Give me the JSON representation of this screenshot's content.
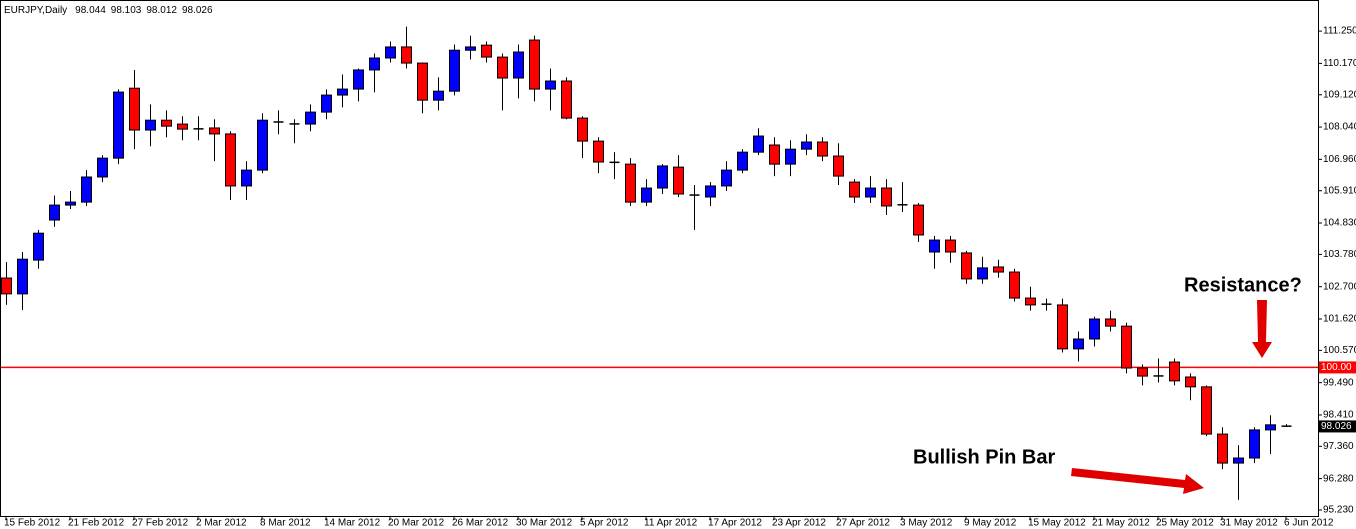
{
  "chart_data": {
    "type": "candlestick",
    "title": "EURJPY,Daily",
    "categories": [
      "15 Feb 2012",
      null,
      null,
      null,
      "21 Feb 2012",
      null,
      null,
      null,
      "27 Feb 2012",
      null,
      null,
      null,
      "2 Mar 2012",
      null,
      null,
      null,
      "8 Mar 2012",
      null,
      null,
      null,
      "14 Mar 2012",
      null,
      null,
      null,
      "20 Mar 2012",
      null,
      null,
      null,
      "26 Mar 2012",
      null,
      null,
      null,
      "30 Mar 2012",
      null,
      null,
      null,
      "5 Apr 2012",
      null,
      null,
      null,
      "11 Apr 2012",
      null,
      null,
      null,
      "17 Apr 2012",
      null,
      null,
      null,
      "23 Apr 2012",
      null,
      null,
      null,
      "27 Apr 2012",
      null,
      null,
      null,
      "3 May 2012",
      null,
      null,
      null,
      "9 May 2012",
      null,
      null,
      null,
      "15 May 2012",
      null,
      null,
      null,
      "21 May 2012",
      null,
      null,
      null,
      "25 May 2012",
      null,
      null,
      null,
      "31 May 2012",
      null,
      null,
      null,
      "6 Jun 2012"
    ],
    "series": {
      "open": [
        102.99,
        102.46,
        103.59,
        104.93,
        105.43,
        105.53,
        106.37,
        107.0,
        109.34,
        107.94,
        108.27,
        108.14,
        107.97,
        108.01,
        107.81,
        106.07,
        106.6,
        108.2,
        108.14,
        108.14,
        108.54,
        109.11,
        109.31,
        109.95,
        110.35,
        110.72,
        110.18,
        108.94,
        109.24,
        110.61,
        110.78,
        110.38,
        109.68,
        110.95,
        109.31,
        109.58,
        108.34,
        107.57,
        106.87,
        106.8,
        105.53,
        106.0,
        106.7,
        105.77,
        105.7,
        106.07,
        106.6,
        107.2,
        107.44,
        106.8,
        107.3,
        107.54,
        107.07,
        106.2,
        105.7,
        106.0,
        105.43,
        105.43,
        103.86,
        104.26,
        103.83,
        102.96,
        103.36,
        103.19,
        102.32,
        102.12,
        102.09,
        100.62,
        100.95,
        101.62,
        101.38,
        99.98,
        99.72,
        100.18,
        99.68,
        99.35,
        97.77,
        96.8,
        96.97,
        97.91,
        98.044
      ],
      "high": [
        103.52,
        103.86,
        104.6,
        105.75,
        105.9,
        106.6,
        107.1,
        109.3,
        109.95,
        108.8,
        108.6,
        108.4,
        108.4,
        108.3,
        107.9,
        106.9,
        108.5,
        108.6,
        108.3,
        108.8,
        109.3,
        109.8,
        110.0,
        110.5,
        110.9,
        111.4,
        110.2,
        109.7,
        110.8,
        111.1,
        110.9,
        110.5,
        110.8,
        111.1,
        110.0,
        109.7,
        108.4,
        107.7,
        107.2,
        107.0,
        106.3,
        106.8,
        107.1,
        106.1,
        106.2,
        106.9,
        107.3,
        108.0,
        107.7,
        107.6,
        107.8,
        107.7,
        107.5,
        106.3,
        106.4,
        106.3,
        106.2,
        105.5,
        104.4,
        104.4,
        103.9,
        103.7,
        103.6,
        103.3,
        102.7,
        102.3,
        102.3,
        101.2,
        101.7,
        101.9,
        101.5,
        100.1,
        100.3,
        100.3,
        99.8,
        99.4,
        98.0,
        97.4,
        98.0,
        98.4,
        98.103
      ],
      "low": [
        102.09,
        101.92,
        103.3,
        104.7,
        105.3,
        105.4,
        106.2,
        106.8,
        107.3,
        107.4,
        107.7,
        107.6,
        107.6,
        106.9,
        105.6,
        105.6,
        106.5,
        107.8,
        107.5,
        107.9,
        108.3,
        108.7,
        108.9,
        109.2,
        110.2,
        110.0,
        108.5,
        108.6,
        109.1,
        110.3,
        110.2,
        108.6,
        109.0,
        108.9,
        108.6,
        108.3,
        107.0,
        106.5,
        106.3,
        105.4,
        105.4,
        105.8,
        105.7,
        104.6,
        105.4,
        105.9,
        106.5,
        107.1,
        106.4,
        106.4,
        107.1,
        106.9,
        106.1,
        105.5,
        105.5,
        105.1,
        105.2,
        104.2,
        103.3,
        103.5,
        102.8,
        102.8,
        103.0,
        102.2,
        101.9,
        101.9,
        100.5,
        100.2,
        100.7,
        101.2,
        99.8,
        99.4,
        99.5,
        99.4,
        98.9,
        97.7,
        96.6,
        95.57,
        96.8,
        97.1,
        98.012
      ],
      "close": [
        102.46,
        103.62,
        104.49,
        105.43,
        105.53,
        106.37,
        107.0,
        109.21,
        107.94,
        108.27,
        108.07,
        107.97,
        107.99,
        107.81,
        106.07,
        106.6,
        108.27,
        108.22,
        108.15,
        108.54,
        109.11,
        109.31,
        109.95,
        110.35,
        110.72,
        110.18,
        108.94,
        109.24,
        110.61,
        110.72,
        110.38,
        109.68,
        110.55,
        109.31,
        109.58,
        108.34,
        107.57,
        106.87,
        106.85,
        105.53,
        106.0,
        106.74,
        105.8,
        105.76,
        106.07,
        106.6,
        107.2,
        107.74,
        106.8,
        107.3,
        107.54,
        107.07,
        106.4,
        105.7,
        106.0,
        105.4,
        105.45,
        104.43,
        104.26,
        103.86,
        102.96,
        103.33,
        103.19,
        102.32,
        102.09,
        102.11,
        100.62,
        100.95,
        101.62,
        101.38,
        99.98,
        99.71,
        99.71,
        99.55,
        99.35,
        97.77,
        96.8,
        96.97,
        97.91,
        98.08,
        98.026
      ]
    },
    "up_color": "#0000ff",
    "down_color": "#ff0000",
    "ylim": [
      95.03,
      112.29
    ],
    "yticks": [
      {
        "value": 111.25,
        "label": "111.250"
      },
      {
        "value": 110.17,
        "label": "110.170"
      },
      {
        "value": 109.12,
        "label": "109.120"
      },
      {
        "value": 108.04,
        "label": "108.040"
      },
      {
        "value": 106.96,
        "label": "106.960"
      },
      {
        "value": 105.91,
        "label": "105.910"
      },
      {
        "value": 104.83,
        "label": "104.830"
      },
      {
        "value": 103.78,
        "label": "103.780"
      },
      {
        "value": 102.7,
        "label": "102.700"
      },
      {
        "value": 101.62,
        "label": "101.620"
      },
      {
        "value": 100.57,
        "label": "100.570"
      },
      {
        "value": 99.49,
        "label": "99.490"
      },
      {
        "value": 98.41,
        "label": "98.410"
      },
      {
        "value": 97.36,
        "label": "97.360"
      },
      {
        "value": 96.28,
        "label": "96.280"
      },
      {
        "value": 95.23,
        "label": "95.230"
      }
    ],
    "resistance_line": {
      "value": 100,
      "label": "100.00",
      "color": "#ff0000"
    },
    "annotations": [
      "Resistance?",
      "Bullish Pin Bar"
    ]
  }
}
